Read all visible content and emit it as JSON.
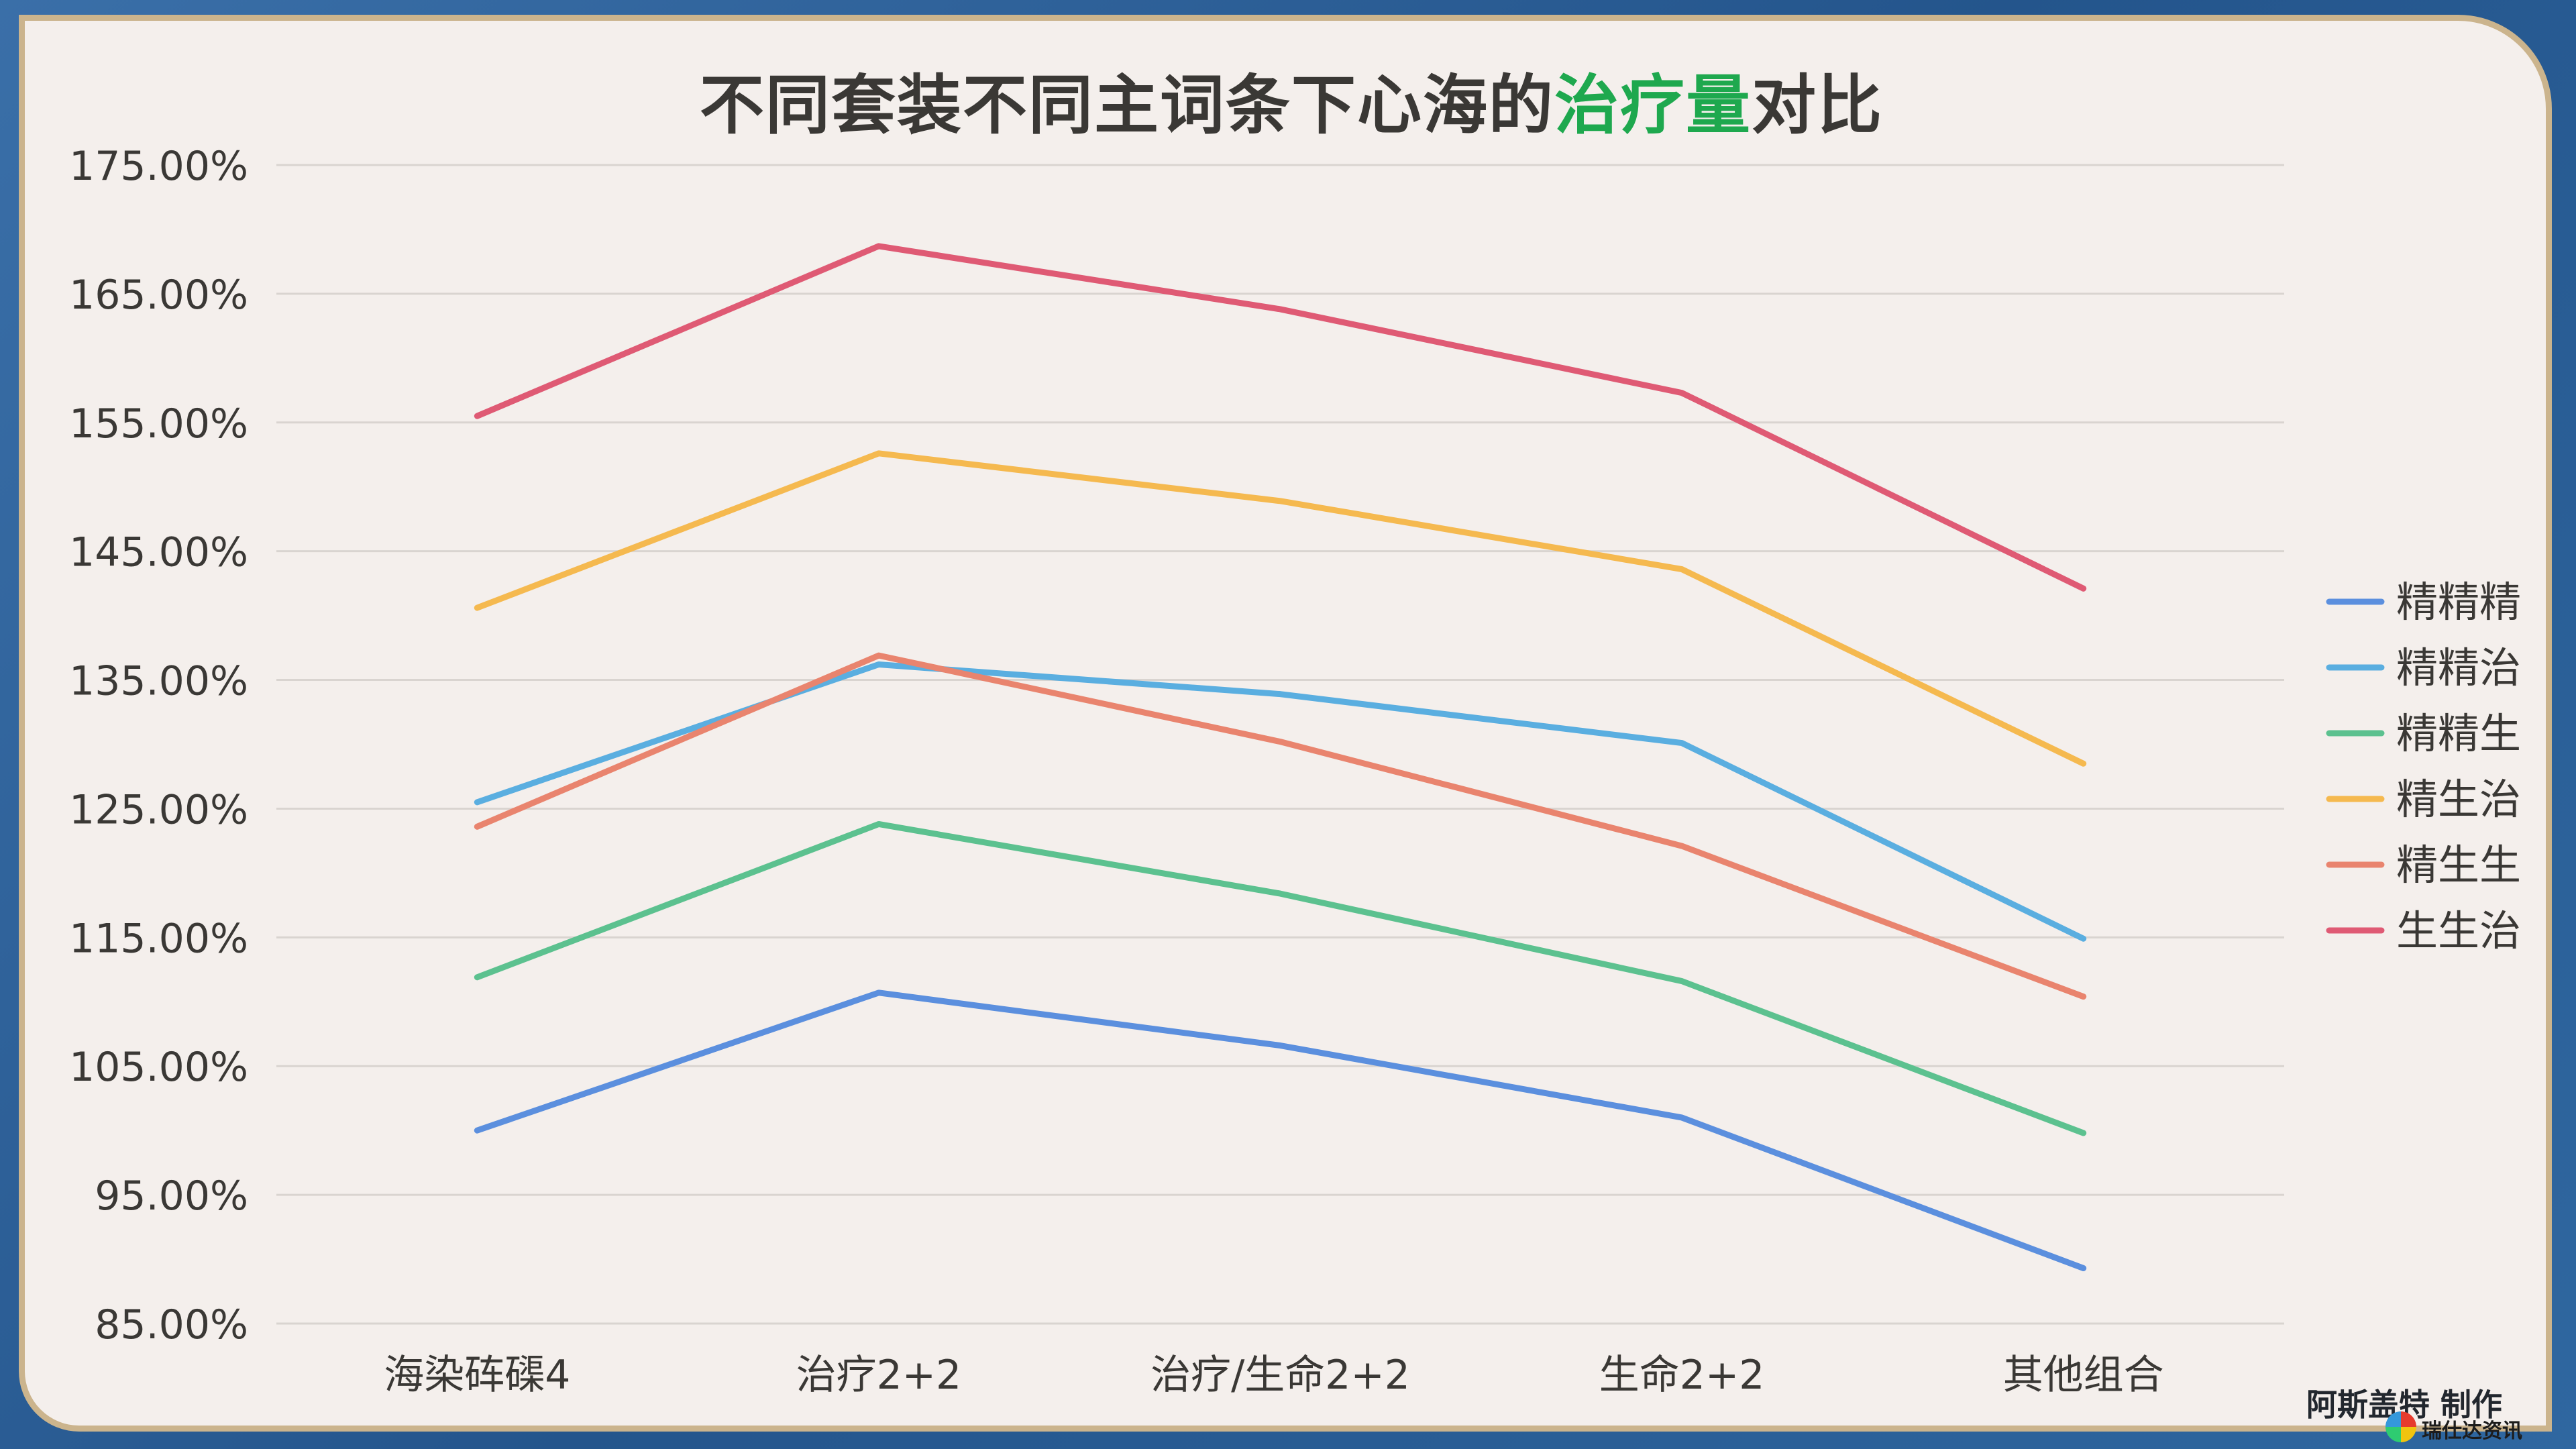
{
  "title": {
    "prefix": "不同套装不同主词条下心海的",
    "highlight": "治疗量",
    "suffix": "对比"
  },
  "colors": {
    "highlight": "#1ea84e",
    "grid": "#d9d4d0",
    "axis_text": "#3a3835"
  },
  "credit": "阿斯盖特 制作",
  "watermark": "瑞仕达资讯",
  "chart_data": {
    "type": "line",
    "categories": [
      "海染砗磲4",
      "治疗2+2",
      "治疗/生命2+2",
      "生命2+2",
      "其他组合"
    ],
    "ylim": [
      0.85,
      1.75
    ],
    "yticks": [
      0.85,
      0.95,
      1.05,
      1.15,
      1.25,
      1.35,
      1.45,
      1.55,
      1.65,
      1.75
    ],
    "ytick_labels": [
      "85.00%",
      "95.00%",
      "105.00%",
      "115.00%",
      "125.00%",
      "135.00%",
      "145.00%",
      "155.00%",
      "165.00%",
      "175.00%"
    ],
    "grid": true,
    "legend_position": "right",
    "series": [
      {
        "name": "精精精",
        "color": "#5b8fde",
        "values": [
          1.0,
          1.107,
          1.066,
          1.01,
          0.893
        ]
      },
      {
        "name": "精精治",
        "color": "#5aaee0",
        "values": [
          1.255,
          1.362,
          1.339,
          1.301,
          1.149
        ]
      },
      {
        "name": "精精生",
        "color": "#5cc18f",
        "values": [
          1.119,
          1.238,
          1.184,
          1.116,
          0.998
        ]
      },
      {
        "name": "精生治",
        "color": "#f5b94f",
        "values": [
          1.406,
          1.526,
          1.489,
          1.436,
          1.285
        ]
      },
      {
        "name": "精生生",
        "color": "#e9846e",
        "values": [
          1.236,
          1.369,
          1.302,
          1.221,
          1.104
        ]
      },
      {
        "name": "生生治",
        "color": "#df5a74",
        "values": [
          1.555,
          1.687,
          1.638,
          1.573,
          1.421
        ]
      }
    ]
  }
}
